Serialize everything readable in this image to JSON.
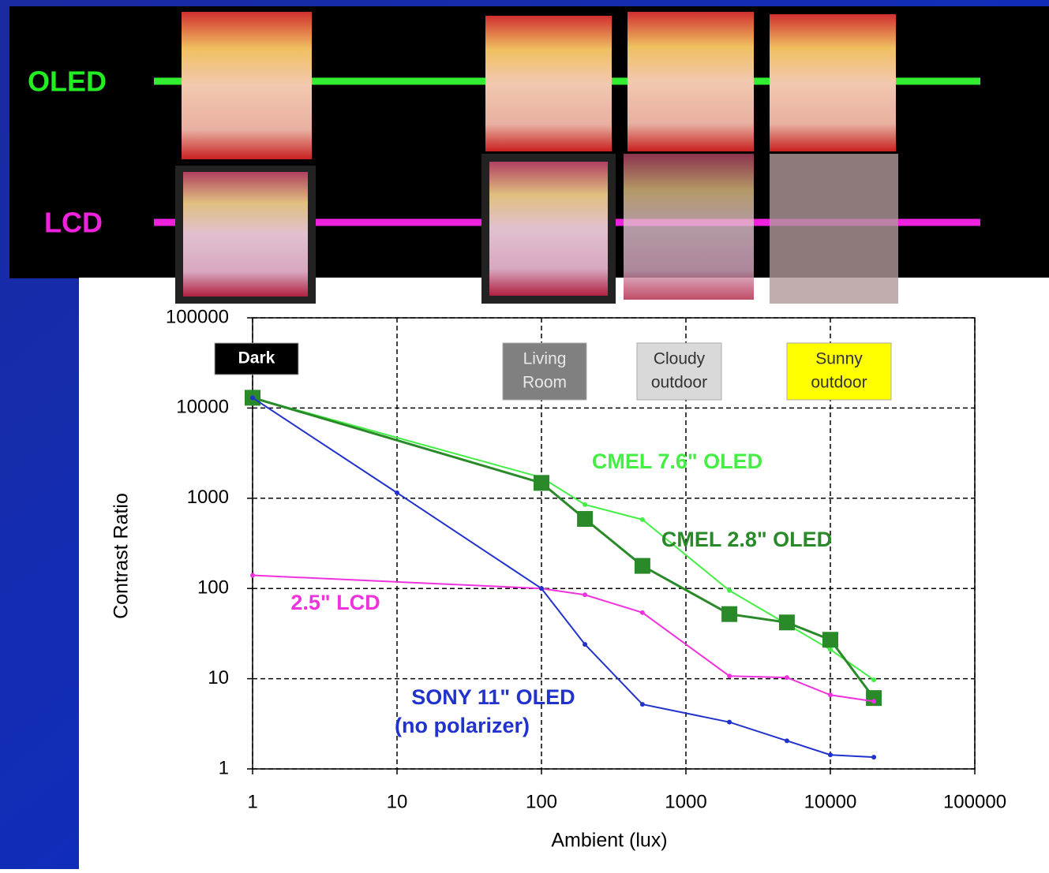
{
  "slide": {
    "row_labels": [
      "OLED",
      "LCD"
    ]
  },
  "chart_data": {
    "type": "line",
    "x_label": "Ambient (lux)",
    "y_label": "Contrast Ratio",
    "xscale": "log",
    "yscale": "log",
    "grid": true,
    "xlim": [
      1,
      100000
    ],
    "ylim": [
      1,
      100000
    ],
    "xticks": [
      1,
      10,
      100,
      1000,
      10000,
      100000
    ],
    "yticks": [
      1,
      10,
      100,
      1000,
      10000,
      100000
    ],
    "annotations": [
      {
        "lines": [
          "Dark"
        ],
        "color": "#000000",
        "text_color": "#ffffff"
      },
      {
        "lines": [
          "Living",
          "Room"
        ],
        "color": "#808080",
        "text_color": "#e8e8e8"
      },
      {
        "lines": [
          "Cloudy",
          "outdoor"
        ],
        "color": "#d9d9d9",
        "text_color": "#333333"
      },
      {
        "lines": [
          "Sunny",
          "outdoor"
        ],
        "color": "#ffff00",
        "text_color": "#333333"
      }
    ],
    "series": [
      {
        "name": "CMEL 7.6\" OLED",
        "color": "#44ee44",
        "marker": "dot",
        "x": [
          1,
          100,
          200,
          500,
          2000,
          10000,
          20000
        ],
        "values": [
          13000,
          1700,
          850,
          580,
          95,
          21,
          9.7
        ]
      },
      {
        "name": "CMEL 2.8\" OLED",
        "color": "#2a8a2a",
        "marker": "square",
        "x": [
          1,
          100,
          200,
          500,
          2000,
          5000,
          10000,
          20000
        ],
        "values": [
          13000,
          1480,
          590,
          178,
          52,
          42,
          27,
          6.1
        ]
      },
      {
        "name": "2.5\" LCD",
        "color": "#ee33dd",
        "marker": "dot",
        "x": [
          1,
          100,
          200,
          500,
          2000,
          5000,
          10000,
          20000
        ],
        "values": [
          140,
          100,
          85,
          54,
          10.7,
          10.3,
          6.6,
          5.6
        ]
      },
      {
        "name": "SONY 11\" OLED",
        "name_note": "(no polarizer)",
        "color": "#2233cc",
        "marker": "dot",
        "x": [
          1,
          10,
          100,
          200,
          500,
          2000,
          5000,
          10000,
          20000
        ],
        "values": [
          13000,
          1150,
          100,
          24,
          5.2,
          3.3,
          2.05,
          1.43,
          1.35
        ]
      }
    ]
  }
}
